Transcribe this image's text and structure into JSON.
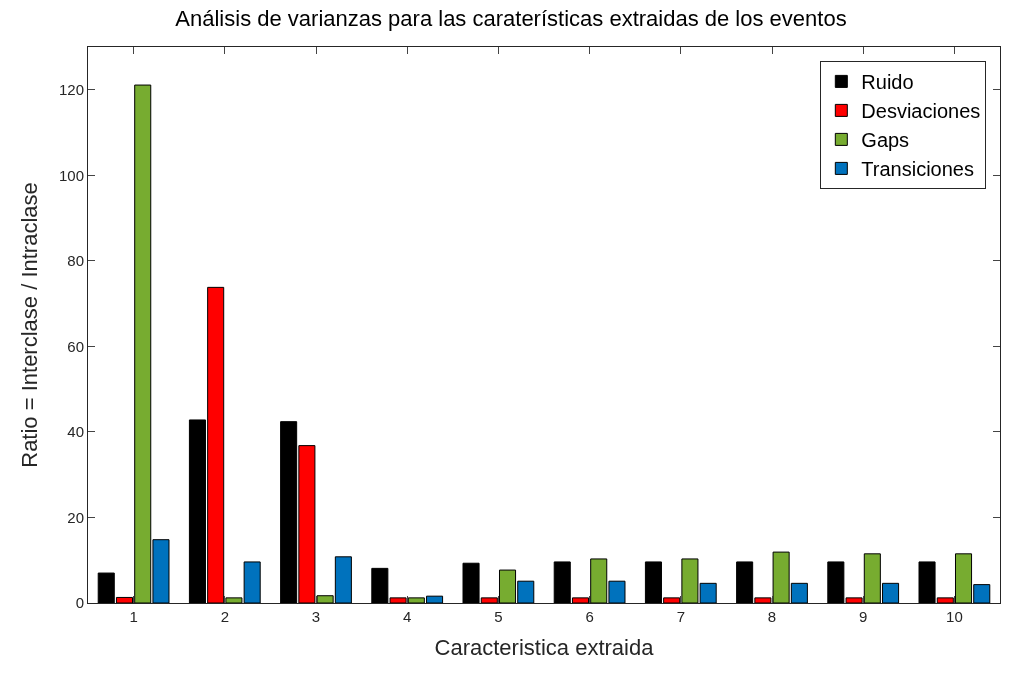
{
  "chart_data": {
    "type": "bar",
    "title": "Análisis de varianzas para las caraterísticas extraidas de los eventos",
    "xlabel": "Caracteristica extraida",
    "ylabel": "Ratio = Interclase / Intraclase",
    "categories": [
      "1",
      "2",
      "3",
      "4",
      "5",
      "6",
      "7",
      "8",
      "9",
      "10"
    ],
    "series": [
      {
        "name": "Ruido",
        "color": "#000000",
        "values": [
          7.0,
          42.8,
          42.4,
          8.1,
          9.3,
          9.6,
          9.6,
          9.6,
          9.6,
          9.6
        ]
      },
      {
        "name": "Desviaciones",
        "color": "#ff0000",
        "values": [
          1.3,
          73.8,
          36.8,
          1.2,
          1.2,
          1.2,
          1.2,
          1.2,
          1.2,
          1.2
        ]
      },
      {
        "name": "Gaps",
        "color": "#77ac30",
        "values": [
          121.1,
          1.2,
          1.7,
          1.2,
          7.7,
          10.3,
          10.3,
          11.9,
          11.5,
          11.5
        ]
      },
      {
        "name": "Transiciones",
        "color": "#0072bd",
        "values": [
          14.8,
          9.6,
          10.8,
          1.6,
          5.1,
          5.1,
          4.6,
          4.6,
          4.6,
          4.3
        ]
      }
    ],
    "ylim": [
      0,
      130
    ],
    "yticks": [
      0,
      20,
      40,
      60,
      80,
      100,
      120
    ],
    "legend": "top right"
  }
}
